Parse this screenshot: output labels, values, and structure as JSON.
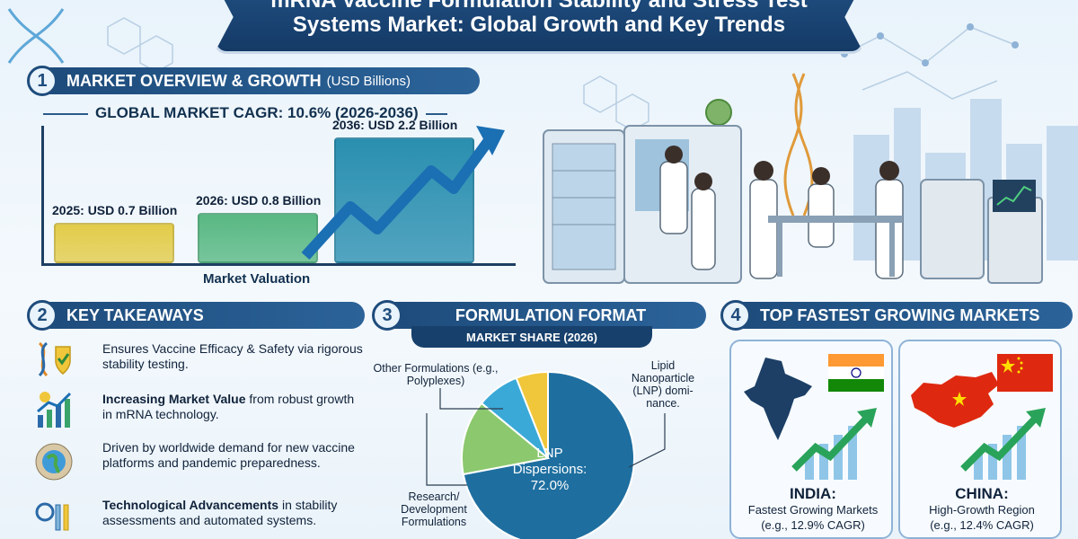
{
  "title": {
    "line1": "mRNA Vaccine Formulation Stability and Stress Test",
    "line2": "Systems Market: Global Growth and Key Trends"
  },
  "section1": {
    "number": "1",
    "heading": "MARKET OVERVIEW & GROWTH",
    "unit": "(USD Billions)",
    "cagr": "GLOBAL MARKET CAGR: 10.6% (2026-2036)",
    "axis_label": "Market Valuation",
    "bars": [
      {
        "label": "2025: USD 0.7 Billion",
        "value": 0.7,
        "color": "#e2cc4a"
      },
      {
        "label": "2026: USD 0.8 Billion",
        "value": 0.8,
        "color": "#58b883"
      },
      {
        "label": "2036: USD 2.2 Billion",
        "value": 2.2,
        "color": "#2a8fb0"
      }
    ]
  },
  "section2": {
    "number": "2",
    "heading": "KEY TAKEAWAYS",
    "items": [
      {
        "icon": "dna-shield-icon",
        "bold": "",
        "text": "Ensures Vaccine Efficacy & Safety via rigorous stability testing."
      },
      {
        "icon": "growth-chart-icon",
        "bold": "Increasing Market Value",
        "text": " from robust growth in mRNA technology."
      },
      {
        "icon": "globe-flags-icon",
        "bold": "",
        "text": "Driven by worldwide demand for new vaccine platforms and pandemic preparedness."
      },
      {
        "icon": "lab-equipment-icon",
        "bold": "Technological Advancements",
        "text": " in stability assessments and automated systems."
      }
    ]
  },
  "section3": {
    "number": "3",
    "heading": "FORMULATION FORMAT",
    "subheading": "MARKET SHARE (2026)",
    "pie": [
      {
        "label": "LNP Dispersions: 72.0%",
        "value": 72.0,
        "color": "#1e6fa0"
      },
      {
        "label": "Research/ Development Formulations",
        "value": 14.0,
        "color": "#8cc86e"
      },
      {
        "label": "Other Formulations (e.g., Polyplexes)",
        "value": 8.0,
        "color": "#3aa9d8"
      },
      {
        "label": "",
        "value": 6.0,
        "color": "#f0c63a"
      }
    ],
    "callout_lnp": "Lipid Nanoparticle (LNP) domi- nance.",
    "label_other": "Other Formulations (e.g., Polyplexes)",
    "label_rd": "Research/ Development Formulations",
    "center_line1": "LNP",
    "center_line2": "Dispersions:",
    "center_line3": "72.0%"
  },
  "section4": {
    "number": "4",
    "heading": "TOP FASTEST GROWING MARKETS",
    "markets": [
      {
        "name": "INDIA:",
        "sub1": "Fastest Growing Markets",
        "sub2": "(e.g., 12.9% CAGR)",
        "cagr": 12.9
      },
      {
        "name": "CHINA:",
        "sub1": "High-Growth Region",
        "sub2": "(e.g., 12.4% CAGR)",
        "cagr": 12.4
      }
    ]
  },
  "colors": {
    "navy": "#1e4c7c",
    "india_saffron": "#ff9933",
    "india_green": "#138808",
    "china_red": "#de2910",
    "china_yellow": "#ffde00"
  }
}
